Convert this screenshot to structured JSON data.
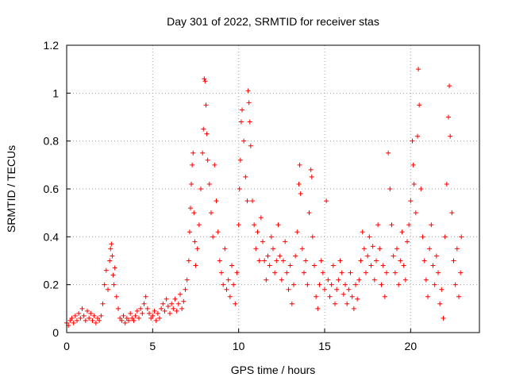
{
  "chart_data": {
    "type": "scatter",
    "title": "Day 301 of 2022, SRMTID for receiver stas",
    "xlabel": "GPS time / hours",
    "ylabel": "SRMTID / TECUs",
    "xlim": [
      0,
      24
    ],
    "ylim": [
      0,
      1.2
    ],
    "x_ticks": [
      0,
      5,
      10,
      15,
      20
    ],
    "x_tick_labels": [
      "0",
      "5",
      "10",
      "15",
      "20"
    ],
    "y_ticks": [
      0,
      0.2,
      0.4,
      0.6,
      0.8,
      1,
      1.2
    ],
    "y_tick_labels": [
      "0",
      "0.2",
      "0.4",
      "0.6",
      "0.8",
      "1",
      "1.2"
    ],
    "grid": true,
    "marker": "plus",
    "color": "#ff0000",
    "series": [
      {
        "name": "stas",
        "points": [
          [
            0.0,
            0.04
          ],
          [
            0.1,
            0.03
          ],
          [
            0.2,
            0.05
          ],
          [
            0.3,
            0.06
          ],
          [
            0.4,
            0.04
          ],
          [
            0.5,
            0.07
          ],
          [
            0.6,
            0.05
          ],
          [
            0.7,
            0.08
          ],
          [
            0.8,
            0.06
          ],
          [
            0.9,
            0.1
          ],
          [
            1.0,
            0.07
          ],
          [
            1.1,
            0.05
          ],
          [
            1.2,
            0.09
          ],
          [
            1.3,
            0.06
          ],
          [
            1.4,
            0.08
          ],
          [
            1.5,
            0.05
          ],
          [
            1.6,
            0.07
          ],
          [
            1.7,
            0.04
          ],
          [
            1.8,
            0.06
          ],
          [
            1.9,
            0.05
          ],
          [
            2.0,
            0.07
          ],
          [
            2.1,
            0.12
          ],
          [
            2.2,
            0.2
          ],
          [
            2.3,
            0.26
          ],
          [
            2.4,
            0.18
          ],
          [
            2.5,
            0.3
          ],
          [
            2.55,
            0.35
          ],
          [
            2.6,
            0.37
          ],
          [
            2.65,
            0.32
          ],
          [
            2.7,
            0.24
          ],
          [
            2.75,
            0.2
          ],
          [
            2.8,
            0.27
          ],
          [
            2.9,
            0.15
          ],
          [
            3.0,
            0.1
          ],
          [
            3.1,
            0.06
          ],
          [
            3.2,
            0.05
          ],
          [
            3.3,
            0.07
          ],
          [
            3.4,
            0.04
          ],
          [
            3.5,
            0.06
          ],
          [
            3.6,
            0.05
          ],
          [
            3.7,
            0.08
          ],
          [
            3.8,
            0.06
          ],
          [
            3.9,
            0.05
          ],
          [
            4.0,
            0.07
          ],
          [
            4.1,
            0.09
          ],
          [
            4.2,
            0.06
          ],
          [
            4.3,
            0.1
          ],
          [
            4.4,
            0.08
          ],
          [
            4.5,
            0.12
          ],
          [
            4.6,
            0.15
          ],
          [
            4.7,
            0.1
          ],
          [
            4.8,
            0.08
          ],
          [
            4.9,
            0.06
          ],
          [
            5.0,
            0.07
          ],
          [
            5.1,
            0.09
          ],
          [
            5.2,
            0.05
          ],
          [
            5.3,
            0.08
          ],
          [
            5.4,
            0.06
          ],
          [
            5.5,
            0.1
          ],
          [
            5.6,
            0.12
          ],
          [
            5.7,
            0.09
          ],
          [
            5.8,
            0.14
          ],
          [
            5.9,
            0.11
          ],
          [
            6.0,
            0.08
          ],
          [
            6.1,
            0.12
          ],
          [
            6.2,
            0.1
          ],
          [
            6.3,
            0.14
          ],
          [
            6.4,
            0.09
          ],
          [
            6.5,
            0.12
          ],
          [
            6.6,
            0.16
          ],
          [
            6.7,
            0.1
          ],
          [
            6.8,
            0.13
          ],
          [
            6.9,
            0.18
          ],
          [
            7.0,
            0.22
          ],
          [
            7.1,
            0.3
          ],
          [
            7.15,
            0.42
          ],
          [
            7.2,
            0.52
          ],
          [
            7.25,
            0.62
          ],
          [
            7.3,
            0.7
          ],
          [
            7.35,
            0.75
          ],
          [
            7.4,
            0.5
          ],
          [
            7.45,
            0.38
          ],
          [
            7.5,
            0.28
          ],
          [
            7.6,
            0.35
          ],
          [
            7.7,
            0.45
          ],
          [
            7.8,
            0.6
          ],
          [
            7.9,
            0.75
          ],
          [
            7.95,
            0.85
          ],
          [
            8.0,
            1.06
          ],
          [
            8.05,
            1.05
          ],
          [
            8.1,
            0.95
          ],
          [
            8.15,
            0.83
          ],
          [
            8.2,
            0.72
          ],
          [
            8.3,
            0.62
          ],
          [
            8.4,
            0.5
          ],
          [
            8.5,
            0.4
          ],
          [
            8.6,
            0.7
          ],
          [
            8.7,
            0.55
          ],
          [
            8.8,
            0.42
          ],
          [
            8.9,
            0.3
          ],
          [
            9.0,
            0.25
          ],
          [
            9.1,
            0.2
          ],
          [
            9.2,
            0.35
          ],
          [
            9.3,
            0.18
          ],
          [
            9.4,
            0.22
          ],
          [
            9.5,
            0.15
          ],
          [
            9.6,
            0.28
          ],
          [
            9.7,
            0.2
          ],
          [
            9.8,
            0.12
          ],
          [
            9.9,
            0.25
          ],
          [
            10.0,
            0.45
          ],
          [
            10.05,
            0.6
          ],
          [
            10.1,
            0.72
          ],
          [
            10.15,
            0.88
          ],
          [
            10.2,
            0.93
          ],
          [
            10.3,
            0.8
          ],
          [
            10.4,
            0.65
          ],
          [
            10.5,
            0.55
          ],
          [
            10.55,
            1.01
          ],
          [
            10.6,
            0.96
          ],
          [
            10.65,
            0.88
          ],
          [
            10.7,
            0.78
          ],
          [
            10.8,
            0.55
          ],
          [
            10.9,
            0.45
          ],
          [
            11.0,
            0.35
          ],
          [
            11.1,
            0.42
          ],
          [
            11.2,
            0.3
          ],
          [
            11.3,
            0.48
          ],
          [
            11.4,
            0.38
          ],
          [
            11.5,
            0.3
          ],
          [
            11.6,
            0.22
          ],
          [
            11.7,
            0.32
          ],
          [
            11.8,
            0.28
          ],
          [
            11.9,
            0.4
          ],
          [
            12.0,
            0.35
          ],
          [
            12.1,
            0.25
          ],
          [
            12.2,
            0.3
          ],
          [
            12.3,
            0.45
          ],
          [
            12.4,
            0.32
          ],
          [
            12.5,
            0.22
          ],
          [
            12.6,
            0.3
          ],
          [
            12.7,
            0.38
          ],
          [
            12.8,
            0.25
          ],
          [
            12.9,
            0.18
          ],
          [
            13.0,
            0.28
          ],
          [
            13.1,
            0.12
          ],
          [
            13.2,
            0.2
          ],
          [
            13.3,
            0.32
          ],
          [
            13.4,
            0.42
          ],
          [
            13.5,
            0.62
          ],
          [
            13.55,
            0.7
          ],
          [
            13.6,
            0.58
          ],
          [
            13.7,
            0.35
          ],
          [
            13.8,
            0.25
          ],
          [
            13.9,
            0.3
          ],
          [
            14.0,
            0.2
          ],
          [
            14.1,
            0.5
          ],
          [
            14.2,
            0.68
          ],
          [
            14.25,
            0.65
          ],
          [
            14.3,
            0.4
          ],
          [
            14.4,
            0.28
          ],
          [
            14.5,
            0.15
          ],
          [
            14.6,
            0.1
          ],
          [
            14.7,
            0.2
          ],
          [
            14.8,
            0.3
          ],
          [
            14.9,
            0.25
          ],
          [
            15.0,
            0.18
          ],
          [
            15.1,
            0.55
          ],
          [
            15.2,
            0.22
          ],
          [
            15.3,
            0.15
          ],
          [
            15.4,
            0.2
          ],
          [
            15.5,
            0.28
          ],
          [
            15.6,
            0.12
          ],
          [
            15.7,
            0.18
          ],
          [
            15.8,
            0.22
          ],
          [
            15.9,
            0.3
          ],
          [
            16.0,
            0.25
          ],
          [
            16.1,
            0.16
          ],
          [
            16.2,
            0.2
          ],
          [
            16.3,
            0.12
          ],
          [
            16.4,
            0.18
          ],
          [
            16.5,
            0.25
          ],
          [
            16.6,
            0.15
          ],
          [
            16.7,
            0.1
          ],
          [
            16.8,
            0.2
          ],
          [
            16.9,
            0.14
          ],
          [
            17.0,
            0.22
          ],
          [
            17.1,
            0.3
          ],
          [
            17.2,
            0.42
          ],
          [
            17.3,
            0.35
          ],
          [
            17.4,
            0.25
          ],
          [
            17.5,
            0.32
          ],
          [
            17.6,
            0.4
          ],
          [
            17.7,
            0.28
          ],
          [
            17.8,
            0.36
          ],
          [
            17.9,
            0.22
          ],
          [
            18.0,
            0.3
          ],
          [
            18.1,
            0.45
          ],
          [
            18.2,
            0.35
          ],
          [
            18.3,
            0.2
          ],
          [
            18.4,
            0.28
          ],
          [
            18.5,
            0.15
          ],
          [
            18.6,
            0.25
          ],
          [
            18.7,
            0.75
          ],
          [
            18.8,
            0.6
          ],
          [
            18.9,
            0.45
          ],
          [
            19.0,
            0.32
          ],
          [
            19.1,
            0.25
          ],
          [
            19.2,
            0.35
          ],
          [
            19.3,
            0.2
          ],
          [
            19.4,
            0.3
          ],
          [
            19.5,
            0.42
          ],
          [
            19.6,
            0.28
          ],
          [
            19.7,
            0.22
          ],
          [
            19.8,
            0.38
          ],
          [
            19.9,
            0.45
          ],
          [
            20.0,
            0.55
          ],
          [
            20.1,
            0.8
          ],
          [
            20.15,
            0.7
          ],
          [
            20.2,
            0.62
          ],
          [
            20.3,
            0.5
          ],
          [
            20.4,
            0.82
          ],
          [
            20.45,
            1.1
          ],
          [
            20.5,
            0.95
          ],
          [
            20.6,
            0.6
          ],
          [
            20.7,
            0.4
          ],
          [
            20.8,
            0.3
          ],
          [
            20.9,
            0.22
          ],
          [
            21.0,
            0.15
          ],
          [
            21.1,
            0.35
          ],
          [
            21.2,
            0.45
          ],
          [
            21.3,
            0.28
          ],
          [
            21.4,
            0.2
          ],
          [
            21.5,
            0.32
          ],
          [
            21.6,
            0.25
          ],
          [
            21.7,
            0.12
          ],
          [
            21.8,
            0.18
          ],
          [
            21.9,
            0.06
          ],
          [
            22.0,
            0.4
          ],
          [
            22.1,
            0.62
          ],
          [
            22.2,
            0.9
          ],
          [
            22.25,
            1.03
          ],
          [
            22.3,
            0.82
          ],
          [
            22.4,
            0.5
          ],
          [
            22.5,
            0.3
          ],
          [
            22.6,
            0.2
          ],
          [
            22.7,
            0.35
          ],
          [
            22.8,
            0.15
          ],
          [
            22.9,
            0.25
          ],
          [
            22.95,
            0.4
          ]
        ]
      }
    ]
  }
}
